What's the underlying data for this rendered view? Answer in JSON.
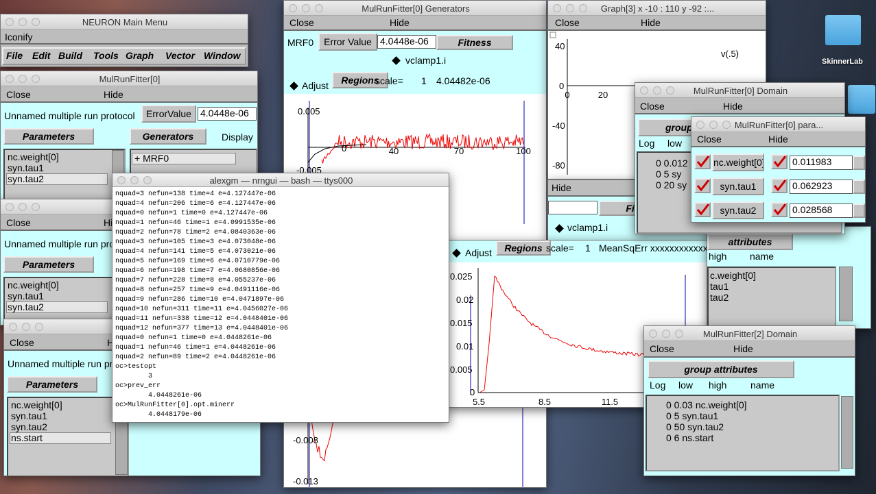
{
  "desktop": {
    "folder_label": "SkinnerLab"
  },
  "main_menu": {
    "title": "NEURON Main Menu",
    "iconify": "Iconify",
    "menu": [
      "File",
      "Edit",
      "Build",
      "Tools",
      "Graph",
      "Vector",
      "Window"
    ]
  },
  "mrf0": {
    "title": "MulRunFitter[0]",
    "close": "Close",
    "hide": "Hide",
    "protocol": "Unnamed multiple run protocol",
    "error_button": "ErrorValue",
    "error_value": "4.0448e-06",
    "parameters": "Parameters",
    "generators": "Generators",
    "display": "Display",
    "param_list": [
      "nc.weight[0]",
      "syn.tau1",
      "syn.tau2"
    ],
    "gen_list": [
      "+ MRF0"
    ]
  },
  "mrf1": {
    "title": "M",
    "close": "Close",
    "hide": "Hi",
    "protocol": "Unnamed multiple run pro",
    "parameters": "Parameters",
    "param_list": [
      "nc.weight[0]",
      "syn.tau1",
      "syn.tau2"
    ]
  },
  "mrf2": {
    "title": "M",
    "close": "Close",
    "hide": "H",
    "protocol": "Unnamed multiple run pr",
    "parameters": "Parameters",
    "param_list": [
      "nc.weight[0]",
      "syn.tau1",
      "syn.tau2",
      "ns.start"
    ]
  },
  "generators": {
    "title": "MulRunFitter[0] Generators",
    "close": "Close",
    "hide": "Hide",
    "name": "MRF0",
    "error_button": "Error Value",
    "error_value": "4.0448e-06",
    "fitness": "Fitness",
    "variable": "vclamp1.i",
    "adjust": "Adjust",
    "regions": "Regions",
    "scale_label": "scale=",
    "scale": "1",
    "value": "4.04482e-06",
    "yticks": [
      "0.005",
      "0",
      "-0.005",
      "-0.008",
      "-0.013"
    ],
    "xticks": [
      "40",
      "70",
      "100"
    ]
  },
  "graph3": {
    "title": "Graph[3]  x -10 : 110  y -92 :...",
    "close": "Close",
    "hide": "Hide",
    "yticks": [
      "40",
      "0",
      "-40",
      "-80"
    ],
    "xticks": [
      "0",
      "20"
    ],
    "label": "v(.5)"
  },
  "generators2": {
    "hide": "Hide",
    "fitness": "Fitnes",
    "variable": "vclamp1.i",
    "adjust": "Adjust",
    "regions": "Regions",
    "scale_label": "scale=",
    "scale": "1",
    "value": "MeanSqErr xxxxxxxxxxxx",
    "yticks": [
      "0.025",
      "0.02",
      "0.015",
      "0.01",
      "0.005",
      "0"
    ],
    "xticks": [
      "5.5",
      "8.5",
      "11.5"
    ]
  },
  "domain_back": {
    "group": "attributes",
    "high": "high",
    "name": "name",
    "list": [
      "c.weight[0]",
      "tau1",
      "tau2"
    ]
  },
  "domain0": {
    "title": "MulRunFitter[0] Domain",
    "close": "Close",
    "hide": "Hide",
    "group": "group attri",
    "log": "Log",
    "low": "low",
    "rows": [
      "0  0.012",
      "0  5  sy",
      "0  20  sy"
    ]
  },
  "params": {
    "title": "MulRunFitter[0] para...",
    "close": "Close",
    "hide": "Hide",
    "rows": [
      {
        "name": "nc.weight[0]",
        "value": "0.011983"
      },
      {
        "name": "syn.tau1",
        "value": "0.062923"
      },
      {
        "name": "syn.tau2",
        "value": "0.028568"
      }
    ]
  },
  "domain2": {
    "title": "MulRunFitter[2] Domain",
    "close": "Close",
    "hide": "Hide",
    "group": "group attributes",
    "header": [
      "Log",
      "low",
      "high",
      "name"
    ],
    "rows": [
      "0  0.03  nc.weight[0]",
      "0  5  syn.tau1",
      "0  50  syn.tau2",
      "0  6  ns.start"
    ]
  },
  "terminal": {
    "title": "alexgm — nrngui — bash — ttys000",
    "lines": [
      "nquad=3 nefun=138 time=4 e=4.127447e-06",
      "nquad=4 nefun=206 time=6 e=4.127447e-06",
      "nquad=0 nefun=1 time=0 e=4.127447e-06",
      "nquad=1 nefun=46 time=1 e=4.0991535e-06",
      "nquad=2 nefun=78 time=2 e=4.0840363e-06",
      "nquad=3 nefun=105 time=3 e=4.073048e-06",
      "nquad=4 nefun=141 time=5 e=4.073021e-06",
      "nquad=5 nefun=169 time=6 e=4.0710779e-06",
      "nquad=6 nefun=198 time=7 e=4.0680856e-06",
      "nquad=7 nefun=228 time=8 e=4.055237e-06",
      "nquad=8 nefun=257 time=9 e=4.0491116e-06",
      "nquad=9 nefun=286 time=10 e=4.0471897e-06",
      "nquad=10 nefun=311 time=11 e=4.0456027e-06",
      "nquad=11 nefun=338 time=12 e=4.0448401e-06",
      "nquad=12 nefun=377 time=13 e=4.0448401e-06",
      "nquad=0 nefun=1 time=0 e=4.0448261e-06",
      "nquad=1 nefun=46 time=1 e=4.0448261e-06",
      "nquad=2 nefun=89 time=2 e=4.0448261e-06",
      "oc>testopt",
      "        3",
      "oc>prev_err",
      "        4.0448261e-06",
      "oc>MulRunFitter[0].opt.minerr",
      "        4.0448179e-06"
    ]
  }
}
